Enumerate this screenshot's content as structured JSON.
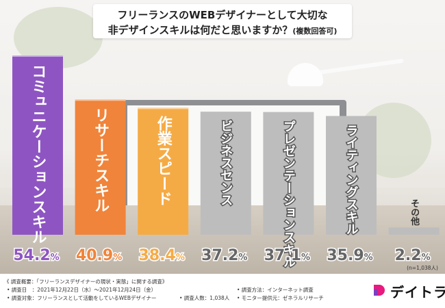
{
  "title": {
    "line1": "フリーランスのWEBデザイナーとして大切な",
    "line2_main": "非デザインスキルは何だと思いますか？",
    "line2_note": "(複数回答可)"
  },
  "chart_data": {
    "type": "bar",
    "categories": [
      "コミュニケーションスキル",
      "リサーチスキル",
      "作業スピード",
      "ビジネスセンス",
      "プレゼンテーションスキル",
      "ライティングスキル",
      "その他"
    ],
    "values": [
      54.2,
      40.9,
      38.4,
      37.2,
      37.1,
      35.9,
      2.2
    ],
    "value_labels": [
      "54.2",
      "40.9",
      "38.4",
      "37.2",
      "37.1",
      "35.9",
      "2.2"
    ],
    "unit": "%",
    "colors": [
      "#8e55c2",
      "#f0843a",
      "#f5ab45",
      "#bdbdbd",
      "#bdbdbd",
      "#bdbdbd",
      "#bdbdbd"
    ],
    "label_colors": [
      "#8e55c2",
      "#f0843a",
      "#f5ab45",
      "#666666",
      "#666666",
      "#666666",
      "#666666"
    ],
    "ylim": [
      0,
      54.2
    ],
    "sample_note": "(n=1,038人)"
  },
  "footer": {
    "heading": "《 調査概要：「フリーランスデザイナーの現状・実態」に関する調査》",
    "date": "• 調査日　：2021年12月22日（水）〜2021年12月24日（金）",
    "target": "• 調査対象：フリーランスとして活動をしているWEBデザイナー",
    "count": "• 調査人数：1,038人",
    "method": "• 調査方法：インターネット調査",
    "provider": "• モニター提供元：ゼネラルリサーチ"
  },
  "brand": {
    "name": "デイトラ",
    "logo_color": "#e8197f",
    "logo_accent": "#7b3fbf"
  }
}
